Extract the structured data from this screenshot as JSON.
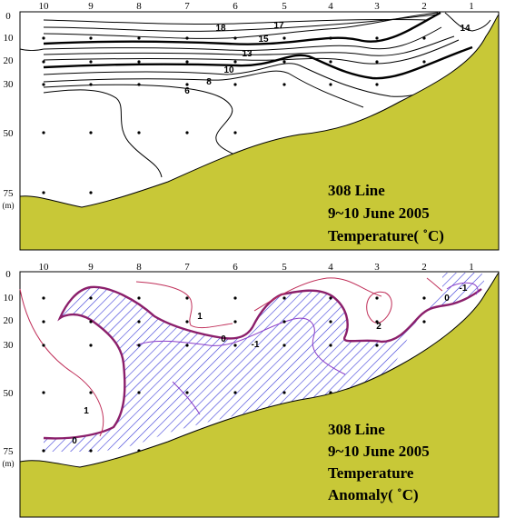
{
  "station_labels": [
    "10",
    "9",
    "8",
    "7",
    "6",
    "5",
    "4",
    "3",
    "2",
    "1"
  ],
  "depth_labels": [
    "0",
    "10",
    "20",
    "30",
    "50",
    "75"
  ],
  "depth_unit": "(m)",
  "top_panel": {
    "caption": [
      "308 Line",
      "9~10 June 2005",
      "Temperature( ˚C)"
    ],
    "contour_labels": [
      "18",
      "17",
      "15",
      "14",
      "13",
      "10",
      "8",
      "6"
    ]
  },
  "bottom_panel": {
    "caption": [
      "308 Line",
      "9~10 June 2005",
      "Temperature",
      "Anomaly( ˚C)"
    ],
    "contour_labels": [
      "1",
      "0",
      "-1",
      "2",
      "-1",
      "0",
      "1"
    ]
  },
  "colors": {
    "land": "#c8c837",
    "contour": "#000000",
    "anomaly_positive": "#c0305a",
    "anomaly_zero": "#8b1f6b",
    "anomaly_negative": "#8a3dc8",
    "hatch": "#3a3ad8"
  }
}
